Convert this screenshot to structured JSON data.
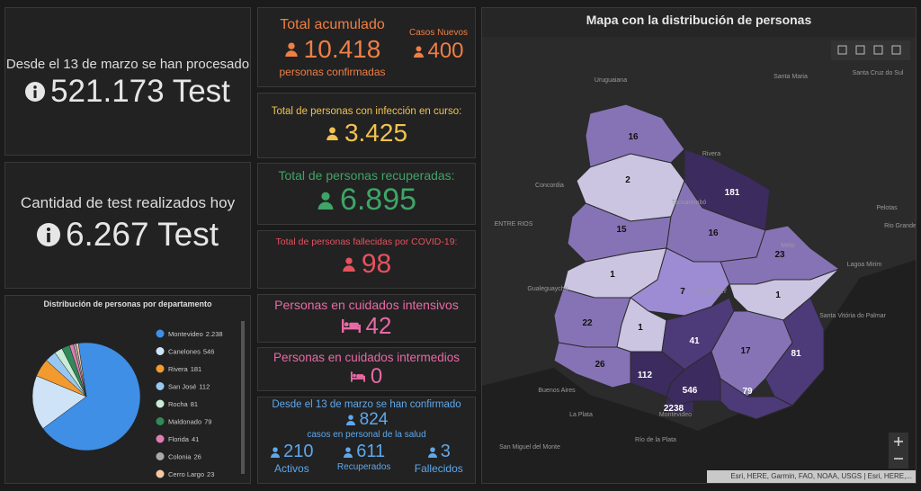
{
  "counter_tests": {
    "caption": "Desde el 13 de marzo se han procesado",
    "value": "521.173 Test"
  },
  "counter_today": {
    "caption": "Cantidad de test realizados hoy",
    "value": "6.267 Test"
  },
  "total": {
    "title": "Total acumulado",
    "value": "10.418",
    "caption": "personas confirmadas",
    "new_title": "Casos Nuevos",
    "new_value": "400"
  },
  "active": {
    "title": "Total de personas con infección en curso:",
    "value": "3.425"
  },
  "recovered": {
    "title": "Total de personas recuperadas:",
    "value": "6.895"
  },
  "deceased": {
    "title": "Total de personas fallecidas por COVID-19:",
    "value": "98"
  },
  "icu": {
    "title": "Personas en cuidados intensivos",
    "value": "42"
  },
  "intermediate": {
    "title": "Personas en cuidados intermedios",
    "value": "0"
  },
  "health_staff": {
    "title": "Desde el 13 de marzo se han confirmado",
    "value": "824",
    "caption": "casos en personal de la salud",
    "stats": [
      {
        "value": "210",
        "label": "Activos"
      },
      {
        "value": "611",
        "label": "Recuperados"
      },
      {
        "value": "3",
        "label": "Fallecidos"
      }
    ]
  },
  "chart_data": {
    "type": "pie",
    "title": "Distribución de personas por departamento",
    "categories": [
      "Montevideo",
      "Canelones",
      "Rivera",
      "San José",
      "Rocha",
      "Maldonado",
      "Florida",
      "Colonia",
      "Cerro Largo"
    ],
    "values": [
      2238,
      546,
      181,
      112,
      81,
      79,
      41,
      26,
      23
    ],
    "value_labels": [
      "2.238",
      "546",
      "181",
      "112",
      "81",
      "79",
      "41",
      "26",
      "23"
    ],
    "colors": [
      "#3f8fe6",
      "#cfe3f7",
      "#f39a2e",
      "#98c8f2",
      "#c9ecd6",
      "#2f8a58",
      "#e07cb3",
      "#a9a9a9",
      "#f6c8a6"
    ]
  },
  "map": {
    "title": "Mapa con la distribución de personas",
    "region_values": [
      16,
      2,
      181,
      15,
      16,
      23,
      1,
      7,
      1,
      22,
      1,
      41,
      17,
      81,
      26,
      112,
      546,
      79,
      2238
    ],
    "places": [
      "Uruguaiana",
      "Santa Maria",
      "Santa Cruz do Sul",
      "Rivera",
      "Concordia",
      "Tacuarembó",
      "ENTRE RIOS",
      "Melo",
      "Pelotas",
      "Rio Grande",
      "Lagoa Mirim",
      "Gualeguaychú",
      "URUGUAY",
      "Santa Vitória do Palmar",
      "Buenos Aires",
      "La Plata",
      "Montevideo",
      "San Miguel del Monte",
      "Río de la Plata"
    ],
    "attribution": "Esri, HERE, Garmin, FAO, NOAA, USGS | Esri, HERE,..."
  }
}
